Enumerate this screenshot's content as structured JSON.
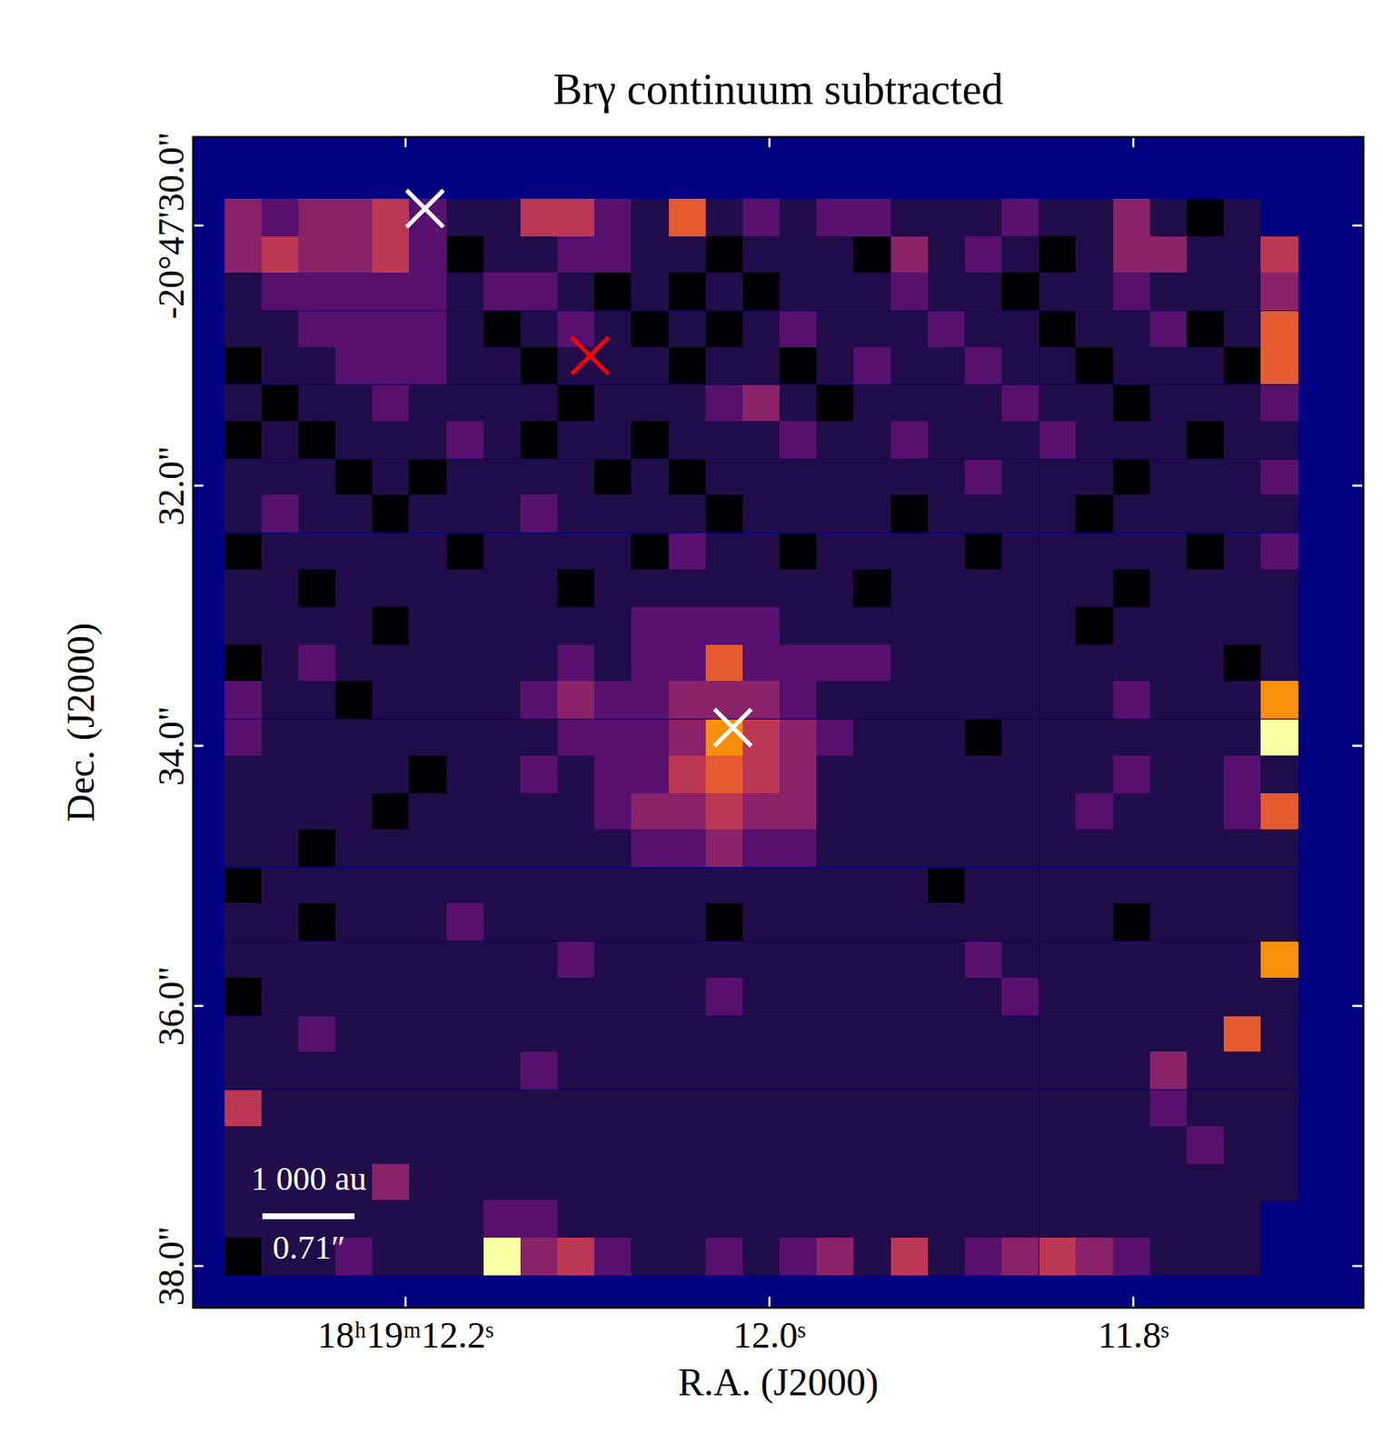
{
  "chart_data": {
    "type": "heatmap",
    "title": "Brγ continuum subtracted",
    "x_label": "R.A. (J2000)",
    "y_label": "Dec. (J2000)",
    "color": "inferno",
    "xlim": [
      12.3167,
      11.6736
    ],
    "ylim": [
      29.32,
      38.32
    ],
    "xticks": [
      {
        "value": 12.2,
        "label": "18ʰ19ᵐ12.2ˢ"
      },
      {
        "value": 12.0,
        "label": "12.0ˢ"
      },
      {
        "value": 11.8,
        "label": "11.8ˢ"
      }
    ],
    "yticks": [
      {
        "value": 30,
        "label": "-20°47'30.0\""
      },
      {
        "value": 32,
        "label": "32.0\""
      },
      {
        "value": 34,
        "label": "34.0\""
      },
      {
        "value": 36,
        "label": "36.0\""
      },
      {
        "value": 38,
        "label": "38.0\""
      }
    ],
    "x": [
      12.2892,
      12.2689,
      12.2485,
      12.2282,
      12.2078,
      12.1875,
      12.1671,
      12.1468,
      12.1264,
      12.1061,
      12.0857,
      12.0654,
      12.045,
      12.0247,
      12.0043,
      11.984,
      11.9636,
      11.9433,
      11.9229,
      11.9026,
      11.8822,
      11.8619,
      11.8415,
      11.8212,
      11.8008,
      11.7805,
      11.7601,
      11.7398,
      11.7194
    ],
    "y": [
      29.94,
      30.23,
      30.51,
      30.8,
      31.08,
      31.37,
      31.65,
      31.94,
      32.22,
      32.51,
      32.79,
      33.08,
      33.37,
      33.65,
      33.94,
      34.22,
      34.51,
      34.79,
      35.08,
      35.36,
      35.65,
      35.93,
      36.22,
      36.5,
      36.79,
      37.07,
      37.36,
      37.64,
      37.93
    ],
    "cells": [
      [
        4,
        3,
        4,
        4,
        5,
        3,
        2,
        2,
        5,
        5,
        3,
        2,
        6,
        2,
        3,
        2,
        3,
        3,
        2,
        2,
        2,
        3,
        2,
        2,
        4,
        2,
        1,
        2,
        null
      ],
      [
        4,
        5,
        4,
        4,
        5,
        3,
        1,
        2,
        2,
        3,
        3,
        2,
        2,
        1,
        2,
        2,
        2,
        1,
        4,
        2,
        3,
        2,
        1,
        2,
        4,
        4,
        2,
        2,
        5
      ],
      [
        2,
        3,
        3,
        3,
        3,
        3,
        2,
        3,
        3,
        2,
        1,
        2,
        1,
        2,
        1,
        2,
        2,
        2,
        3,
        2,
        2,
        1,
        2,
        2,
        3,
        2,
        2,
        2,
        4
      ],
      [
        2,
        2,
        3,
        3,
        3,
        3,
        2,
        1,
        2,
        3,
        2,
        1,
        2,
        1,
        2,
        3,
        2,
        2,
        2,
        3,
        2,
        2,
        1,
        2,
        2,
        3,
        1,
        2,
        6
      ],
      [
        1,
        2,
        2,
        3,
        3,
        3,
        2,
        2,
        1,
        2,
        2,
        2,
        1,
        2,
        2,
        1,
        2,
        3,
        2,
        2,
        3,
        2,
        2,
        1,
        2,
        2,
        2,
        1,
        6
      ],
      [
        2,
        1,
        2,
        2,
        3,
        2,
        2,
        2,
        2,
        1,
        2,
        2,
        2,
        3,
        4,
        2,
        1,
        2,
        2,
        2,
        2,
        3,
        2,
        2,
        1,
        2,
        2,
        2,
        3
      ],
      [
        1,
        2,
        1,
        2,
        2,
        2,
        3,
        2,
        1,
        2,
        2,
        1,
        2,
        2,
        2,
        3,
        2,
        2,
        3,
        2,
        2,
        2,
        3,
        2,
        2,
        2,
        1,
        2,
        2
      ],
      [
        2,
        2,
        2,
        1,
        2,
        1,
        2,
        2,
        2,
        2,
        1,
        2,
        1,
        2,
        2,
        2,
        2,
        2,
        2,
        2,
        3,
        2,
        2,
        2,
        1,
        2,
        2,
        2,
        3
      ],
      [
        2,
        3,
        2,
        2,
        1,
        2,
        2,
        2,
        3,
        2,
        2,
        2,
        2,
        1,
        2,
        2,
        2,
        2,
        1,
        2,
        2,
        2,
        2,
        1,
        2,
        2,
        2,
        2,
        2
      ],
      [
        1,
        2,
        2,
        2,
        2,
        2,
        1,
        2,
        2,
        2,
        2,
        1,
        3,
        2,
        2,
        1,
        2,
        2,
        2,
        2,
        1,
        2,
        2,
        2,
        2,
        2,
        1,
        2,
        3
      ],
      [
        2,
        2,
        1,
        2,
        2,
        2,
        2,
        2,
        2,
        1,
        2,
        2,
        2,
        2,
        2,
        2,
        2,
        1,
        2,
        2,
        2,
        2,
        2,
        2,
        1,
        2,
        2,
        2,
        2
      ],
      [
        2,
        2,
        2,
        2,
        1,
        2,
        2,
        2,
        2,
        2,
        2,
        3,
        3,
        3,
        3,
        2,
        2,
        2,
        2,
        2,
        2,
        2,
        2,
        1,
        2,
        2,
        2,
        2,
        2
      ],
      [
        1,
        2,
        3,
        2,
        2,
        2,
        2,
        2,
        2,
        3,
        2,
        3,
        3,
        6,
        3,
        3,
        3,
        3,
        2,
        2,
        2,
        2,
        2,
        2,
        2,
        2,
        2,
        1,
        2
      ],
      [
        3,
        2,
        2,
        1,
        2,
        2,
        2,
        2,
        3,
        4,
        3,
        3,
        4,
        4,
        4,
        3,
        2,
        2,
        2,
        2,
        2,
        2,
        2,
        2,
        3,
        2,
        2,
        2,
        7
      ],
      [
        3,
        2,
        2,
        2,
        2,
        2,
        2,
        2,
        2,
        3,
        3,
        3,
        4,
        7,
        5,
        4,
        3,
        2,
        2,
        2,
        1,
        2,
        2,
        2,
        2,
        2,
        2,
        2,
        9
      ],
      [
        2,
        2,
        2,
        2,
        2,
        1,
        2,
        2,
        3,
        2,
        3,
        3,
        5,
        6,
        5,
        4,
        2,
        2,
        2,
        2,
        2,
        2,
        2,
        2,
        3,
        2,
        2,
        3,
        2
      ],
      [
        2,
        2,
        2,
        2,
        1,
        2,
        2,
        2,
        2,
        2,
        3,
        4,
        4,
        5,
        4,
        4,
        2,
        2,
        2,
        2,
        2,
        2,
        2,
        3,
        2,
        2,
        2,
        3,
        6
      ],
      [
        2,
        2,
        1,
        2,
        2,
        2,
        2,
        2,
        2,
        2,
        2,
        3,
        3,
        4,
        3,
        3,
        2,
        2,
        2,
        2,
        2,
        2,
        2,
        2,
        2,
        2,
        2,
        2,
        2
      ],
      [
        1,
        2,
        2,
        2,
        2,
        2,
        2,
        2,
        2,
        2,
        2,
        2,
        2,
        2,
        2,
        2,
        2,
        2,
        2,
        1,
        2,
        2,
        2,
        2,
        2,
        2,
        2,
        2,
        2
      ],
      [
        2,
        2,
        1,
        2,
        2,
        2,
        3,
        2,
        2,
        2,
        2,
        2,
        2,
        1,
        2,
        2,
        2,
        2,
        2,
        2,
        2,
        2,
        2,
        2,
        1,
        2,
        2,
        2,
        2
      ],
      [
        2,
        2,
        2,
        2,
        2,
        2,
        2,
        2,
        2,
        3,
        2,
        2,
        2,
        2,
        2,
        2,
        2,
        2,
        2,
        2,
        3,
        2,
        2,
        2,
        2,
        2,
        2,
        2,
        7
      ],
      [
        1,
        2,
        2,
        2,
        2,
        2,
        2,
        2,
        2,
        2,
        2,
        2,
        2,
        3,
        2,
        2,
        2,
        2,
        2,
        2,
        2,
        3,
        2,
        2,
        2,
        2,
        2,
        2,
        2
      ],
      [
        2,
        2,
        3,
        2,
        2,
        2,
        2,
        2,
        2,
        2,
        2,
        2,
        2,
        2,
        2,
        2,
        2,
        2,
        2,
        2,
        2,
        2,
        2,
        2,
        2,
        2,
        2,
        6,
        2
      ],
      [
        2,
        2,
        2,
        2,
        2,
        2,
        2,
        2,
        3,
        2,
        2,
        2,
        2,
        2,
        2,
        2,
        2,
        2,
        2,
        2,
        2,
        2,
        2,
        2,
        2,
        4,
        2,
        2,
        2
      ],
      [
        5,
        2,
        2,
        2,
        2,
        2,
        2,
        2,
        2,
        2,
        2,
        2,
        2,
        2,
        2,
        2,
        2,
        2,
        2,
        2,
        2,
        2,
        2,
        2,
        2,
        3,
        2,
        2,
        2
      ],
      [
        2,
        2,
        2,
        2,
        2,
        2,
        2,
        2,
        2,
        2,
        2,
        2,
        2,
        2,
        2,
        2,
        2,
        2,
        2,
        2,
        2,
        2,
        2,
        2,
        2,
        2,
        3,
        2,
        2
      ],
      [
        2,
        2,
        2,
        2,
        4,
        2,
        2,
        2,
        2,
        2,
        2,
        2,
        2,
        2,
        2,
        2,
        2,
        2,
        2,
        2,
        2,
        2,
        2,
        2,
        2,
        2,
        2,
        2,
        2
      ],
      [
        2,
        2,
        2,
        2,
        2,
        2,
        2,
        3,
        3,
        2,
        2,
        2,
        2,
        2,
        2,
        2,
        2,
        2,
        2,
        2,
        2,
        2,
        2,
        2,
        2,
        2,
        2,
        2,
        null
      ],
      [
        1,
        2,
        2,
        3,
        2,
        2,
        2,
        9,
        4,
        5,
        3,
        2,
        2,
        3,
        2,
        3,
        4,
        2,
        5,
        2,
        3,
        4,
        5,
        4,
        3,
        2,
        2,
        2,
        null
      ]
    ],
    "markers": [
      {
        "x": 12.1893,
        "y": 29.87,
        "color": "#ffffff"
      },
      {
        "x": 12.0986,
        "y": 31.0,
        "color": "#ff0000"
      },
      {
        "x": 12.0201,
        "y": 33.86,
        "color": "#ffffff"
      }
    ],
    "scale_bar": {
      "length": 0.71,
      "label": "1 000 au",
      "length_label": "0.71″"
    }
  }
}
